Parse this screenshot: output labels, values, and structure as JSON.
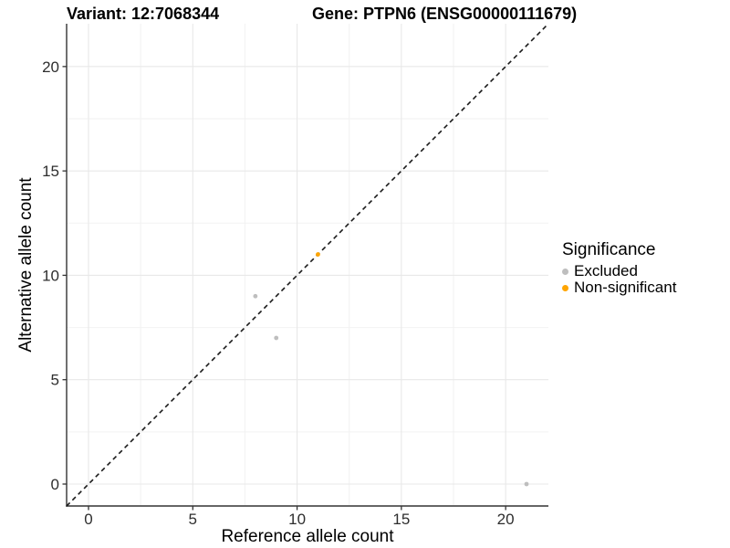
{
  "header": {
    "variant_title": "Variant: 12:7068344",
    "gene_title": "Gene: PTPN6 (ENSG00000111679)"
  },
  "chart_data": {
    "type": "scatter",
    "xlabel": "Reference allele count",
    "ylabel": "Alternative allele count",
    "xlim": [
      -1.05,
      22.05
    ],
    "ylim": [
      -1.05,
      22.05
    ],
    "xticks": [
      0,
      5,
      10,
      15,
      20
    ],
    "yticks": [
      0,
      5,
      10,
      15,
      20
    ],
    "minor_xticks": [
      2.5,
      7.5,
      12.5,
      17.5
    ],
    "minor_yticks": [
      2.5,
      7.5,
      12.5,
      17.5
    ],
    "grid": true,
    "series": [
      {
        "name": "Excluded",
        "color": "#BEBEBE",
        "points": [
          [
            8,
            9
          ],
          [
            9,
            7
          ],
          [
            21,
            0
          ]
        ]
      },
      {
        "name": "Non-significant",
        "color": "#FFA500",
        "points": [
          [
            11,
            11
          ]
        ]
      }
    ],
    "reference_line": {
      "type": "identity",
      "slope": 1,
      "intercept": 0,
      "style": "dashed",
      "color": "#1A1A1A"
    },
    "legend": {
      "title": "Significance",
      "position": "right"
    }
  },
  "colors": {
    "background": "#FFFFFF",
    "grid_major": "#E8E8E8",
    "grid_minor": "#F2F2F2",
    "axis_line": "#343434",
    "tick_mark": "#333333",
    "tick_text": "#2E2E2E"
  }
}
